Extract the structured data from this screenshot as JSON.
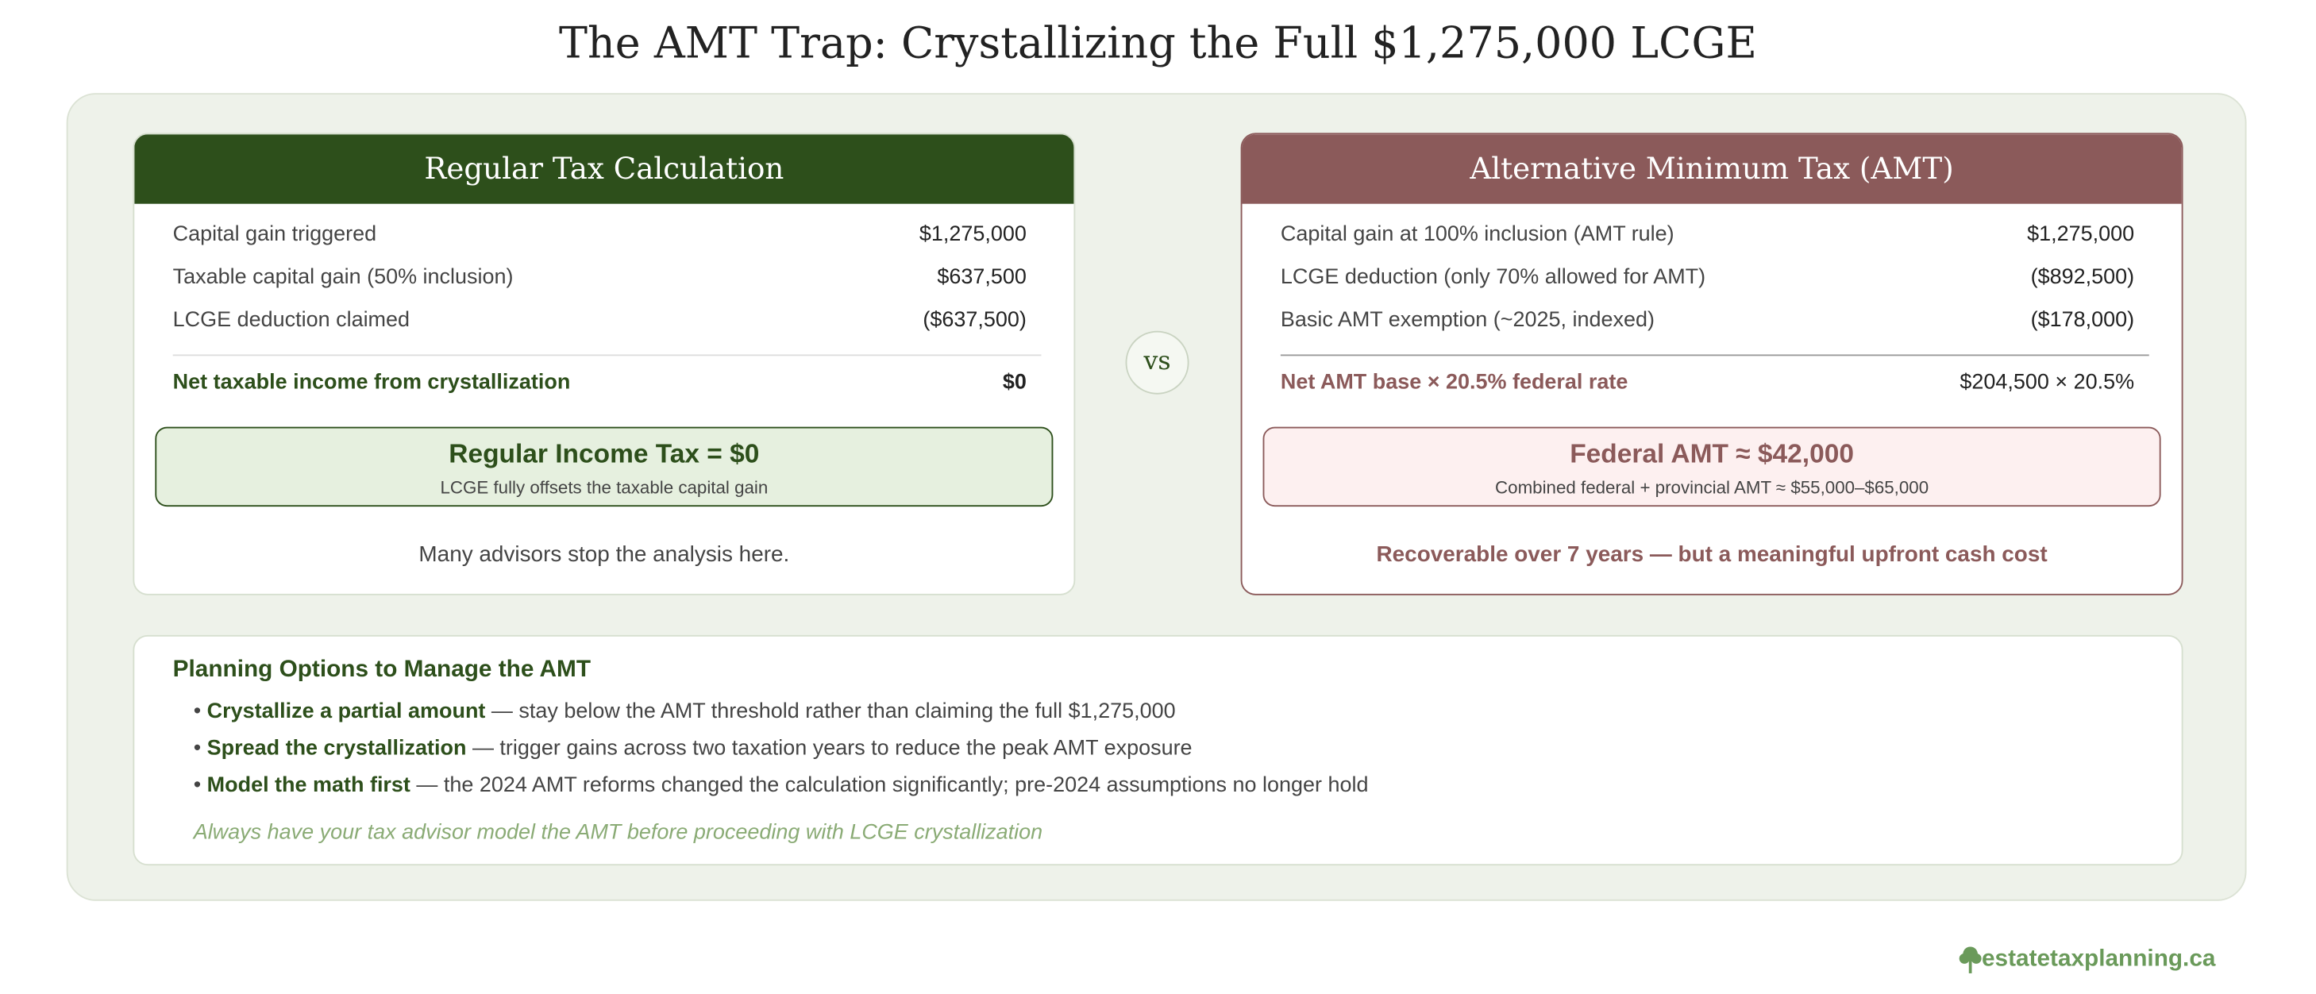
{
  "title": "The AMT Trap: Crystallizing the Full $1,275,000 LCGE",
  "regular": {
    "heading": "Regular Tax Calculation",
    "rows": [
      {
        "label": "Capital gain triggered",
        "value": "$1,275,000"
      },
      {
        "label": "Taxable capital gain (50% inclusion)",
        "value": "$637,500"
      },
      {
        "label": "LCGE deduction claimed",
        "value": "($637,500)"
      }
    ],
    "total": {
      "label": "Net taxable income from crystallization",
      "value": "$0"
    },
    "result": {
      "title": "Regular Income Tax = $0",
      "note": "LCGE fully offsets the taxable capital gain"
    },
    "footer": "Many advisors stop the analysis here."
  },
  "vs": "vs",
  "amt": {
    "heading": "Alternative Minimum Tax (AMT)",
    "rows": [
      {
        "label": "Capital gain at 100% inclusion (AMT rule)",
        "value": "$1,275,000"
      },
      {
        "label": "LCGE deduction (only 70% allowed for AMT)",
        "value": "($892,500)"
      },
      {
        "label": "Basic AMT exemption (~2025, indexed)",
        "value": "($178,000)"
      }
    ],
    "total": {
      "label": "Net AMT base × 20.5% federal rate",
      "value": "$204,500 × 20.5%"
    },
    "result": {
      "title": "Federal AMT ≈ $42,000",
      "note": "Combined federal + provincial AMT ≈ $55,000–$65,000"
    },
    "footer": "Recoverable over 7 years — but a meaningful upfront cash cost"
  },
  "planning": {
    "heading": "Planning Options to Manage the AMT",
    "items": [
      {
        "bold": "Crystallize a partial amount",
        "text": "— stay below the AMT threshold rather than claiming the full $1,275,000"
      },
      {
        "bold": "Spread the crystallization",
        "text": "— trigger gains across two taxation years to reduce the peak AMT exposure"
      },
      {
        "bold": "Model the math first",
        "text": "— the 2024 AMT reforms changed the calculation significantly; pre-2024 assumptions no longer hold"
      }
    ],
    "note": "Always have your tax advisor model the AMT before proceeding with LCGE crystallization"
  },
  "brand": "estatetaxplanning.ca"
}
